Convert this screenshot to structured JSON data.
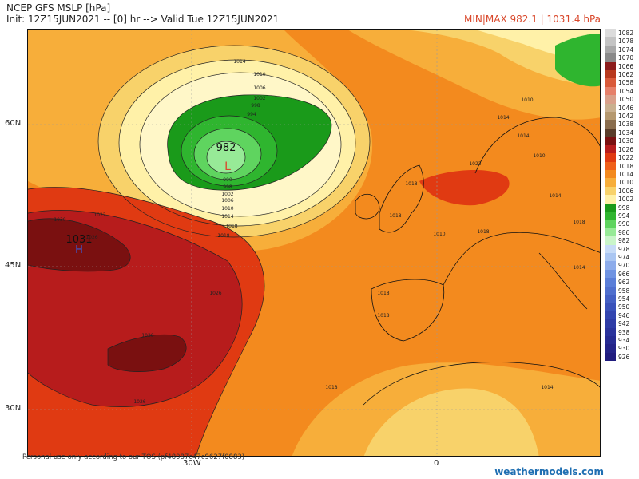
{
  "header": {
    "title": "NCEP GFS MSLP [hPa]",
    "init": "Init: 12Z15JUN2021 -- [0] hr --> Valid Tue 12Z15JUN2021",
    "minmax": "MIN|MAX 982.1 | 1031.4 hPa"
  },
  "axes": {
    "lat_labels": [
      "60N",
      "45N",
      "30N"
    ],
    "lon_labels": [
      "30W",
      "0"
    ]
  },
  "map": {
    "low_value": "982",
    "low_symbol": "L",
    "high_value": "1031",
    "high_symbol": "H",
    "isobar_labels": [
      "1014",
      "1010",
      "1006",
      "1002",
      "998",
      "994",
      "990",
      "998",
      "1002",
      "1006",
      "1010",
      "1014",
      "1018",
      "1018",
      "1022",
      "1026",
      "1030",
      "1030",
      "1026",
      "1026",
      "1018",
      "1018",
      "1014",
      "1010",
      "1014",
      "1010",
      "1014",
      "1018",
      "1014",
      "1010",
      "1018",
      "1018",
      "1022",
      "1018",
      "1018",
      "1014"
    ]
  },
  "legend": {
    "levels": [
      "1082",
      "1078",
      "1074",
      "1070",
      "1066",
      "1062",
      "1058",
      "1054",
      "1050",
      "1046",
      "1042",
      "1038",
      "1034",
      "1030",
      "1026",
      "1022",
      "1018",
      "1014",
      "1010",
      "1006",
      "1002",
      "998",
      "994",
      "990",
      "986",
      "982",
      "978",
      "974",
      "970",
      "966",
      "962",
      "958",
      "954",
      "950",
      "946",
      "942",
      "938",
      "934",
      "930",
      "926"
    ],
    "colors": [
      "#dcdcdc",
      "#c4c4c4",
      "#a8a8a8",
      "#8a8a8a",
      "#8b1c1c",
      "#b8391e",
      "#d95a3a",
      "#e6806a",
      "#d9a08a",
      "#c9b08f",
      "#b5986e",
      "#8a6d4e",
      "#5a3d2a",
      "#7a1010",
      "#b71c1c",
      "#e03a12",
      "#f0601a",
      "#f38a1e",
      "#f7ae3a",
      "#f8d26a",
      "#fff1a8",
      "#1a9a1a",
      "#2fb52f",
      "#5fd45f",
      "#97ea97",
      "#c9f5c9",
      "#c6dbf7",
      "#aac6f2",
      "#8daceb",
      "#6f93e2",
      "#5a7ed8",
      "#4f6fce",
      "#4460c4",
      "#3a52ba",
      "#3346b0",
      "#2e3ca6",
      "#2a339c",
      "#262b92",
      "#232388",
      "#201c7e"
    ]
  },
  "footer": {
    "disclaimer": "Personal use only according to our TOS (pf48087c47c9627f0883)",
    "brand": "weathermodels.com"
  }
}
